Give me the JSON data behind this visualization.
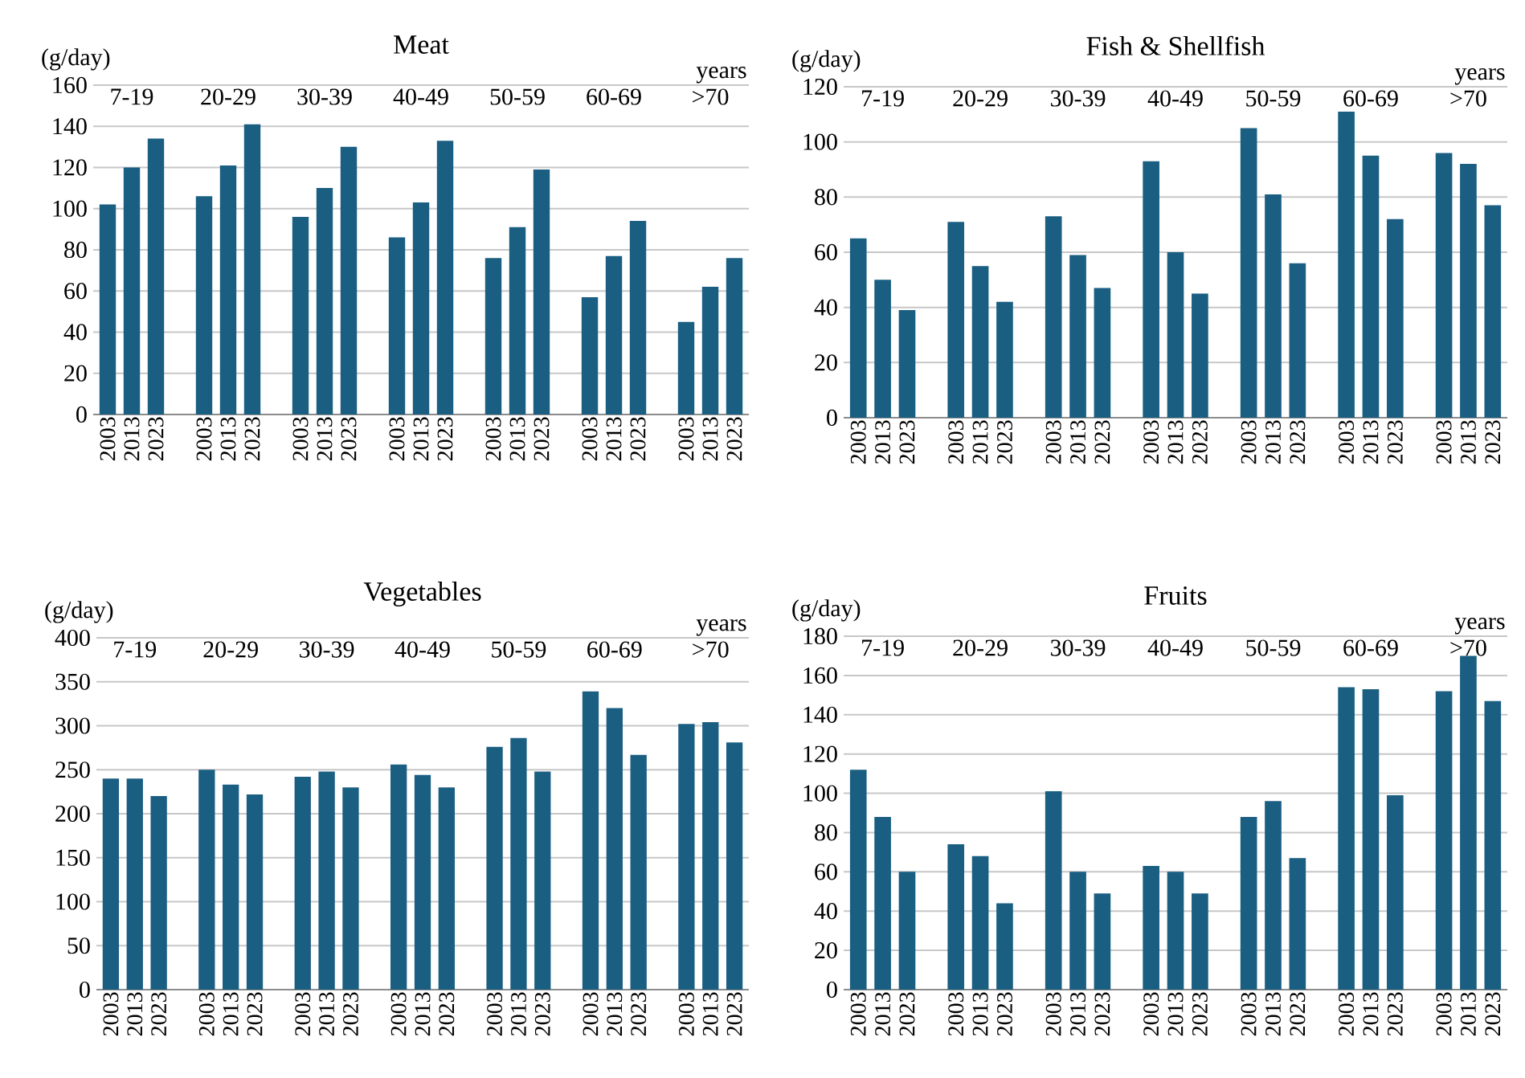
{
  "chart_data": [
    {
      "type": "bar",
      "title": "Meat",
      "ylabel": "(g/day)",
      "categories": [
        "2003",
        "2013",
        "2023",
        null,
        "2003",
        "2013",
        "2023",
        null,
        "2003",
        "2013",
        "2023",
        null,
        "2003",
        "2013",
        "2023",
        null,
        "2003",
        "2013",
        "2023",
        null,
        "2003",
        "2013",
        "2023",
        null,
        "2003",
        "2013",
        "2023"
      ],
      "values": [
        102,
        120,
        134,
        null,
        106,
        121,
        141,
        null,
        96,
        110,
        130,
        null,
        86,
        103,
        133,
        null,
        76,
        91,
        119,
        null,
        57,
        77,
        94,
        null,
        45,
        62,
        76
      ],
      "color": "#1a5e82",
      "ylim": [
        0,
        160
      ],
      "yticks": [
        0,
        20,
        40,
        60,
        80,
        100,
        120,
        140,
        160
      ],
      "grid": "y",
      "annotations": [
        "7-19",
        "20-29",
        "30-39",
        "40-49",
        "50-59",
        "60-69",
        ">70",
        "years"
      ]
    },
    {
      "type": "bar",
      "title": "Fish & Shellfish",
      "ylabel": "(g/day)",
      "categories": [
        "2003",
        "2013",
        "2023",
        null,
        "2003",
        "2013",
        "2023",
        null,
        "2003",
        "2013",
        "2023",
        null,
        "2003",
        "2013",
        "2023",
        null,
        "2003",
        "2013",
        "2023",
        null,
        "2003",
        "2013",
        "2023",
        null,
        "2003",
        "2013",
        "2023"
      ],
      "values": [
        65,
        50,
        39,
        null,
        71,
        55,
        42,
        null,
        73,
        59,
        47,
        null,
        93,
        60,
        45,
        null,
        105,
        81,
        56,
        null,
        111,
        95,
        72,
        null,
        96,
        92,
        77
      ],
      "color": "#1a5e82",
      "ylim": [
        0,
        120
      ],
      "yticks": [
        0,
        20,
        40,
        60,
        80,
        100,
        120
      ],
      "grid": "y",
      "annotations": [
        "7-19",
        "20-29",
        "30-39",
        "40-49",
        "50-59",
        "60-69",
        ">70",
        "years"
      ]
    },
    {
      "type": "bar",
      "title": "Vegetables",
      "ylabel": "(g/day)",
      "categories": [
        "2003",
        "2013",
        "2023",
        null,
        "2003",
        "2013",
        "2023",
        null,
        "2003",
        "2013",
        "2023",
        null,
        "2003",
        "2013",
        "2023",
        null,
        "2003",
        "2013",
        "2023",
        null,
        "2003",
        "2013",
        "2023",
        null,
        "2003",
        "2013",
        "2023"
      ],
      "values": [
        240,
        240,
        220,
        null,
        250,
        233,
        222,
        null,
        242,
        248,
        230,
        null,
        256,
        244,
        230,
        null,
        276,
        286,
        248,
        null,
        339,
        320,
        267,
        null,
        302,
        304,
        281
      ],
      "color": "#1a5e82",
      "ylim": [
        0,
        400
      ],
      "yticks": [
        0,
        50,
        100,
        150,
        200,
        250,
        300,
        350,
        400
      ],
      "grid": "y",
      "annotations": [
        "7-19",
        "20-29",
        "30-39",
        "40-49",
        "50-59",
        "60-69",
        ">70",
        "years"
      ]
    },
    {
      "type": "bar",
      "title": "Fruits",
      "ylabel": "(g/day)",
      "categories": [
        "2003",
        "2013",
        "2023",
        null,
        "2003",
        "2013",
        "2023",
        null,
        "2003",
        "2013",
        "2023",
        null,
        "2003",
        "2013",
        "2023",
        null,
        "2003",
        "2013",
        "2023",
        null,
        "2003",
        "2013",
        "2023",
        null,
        "2003",
        "2013",
        "2023"
      ],
      "values": [
        112,
        88,
        60,
        null,
        74,
        68,
        44,
        null,
        101,
        60,
        49,
        null,
        63,
        60,
        49,
        null,
        88,
        96,
        67,
        null,
        154,
        153,
        99,
        null,
        152,
        170,
        147
      ],
      "color": "#1a5e82",
      "ylim": [
        0,
        180
      ],
      "yticks": [
        0,
        20,
        40,
        60,
        80,
        100,
        120,
        140,
        160,
        180
      ],
      "grid": "y",
      "annotations": [
        "7-19",
        "20-29",
        "30-39",
        "40-49",
        "50-59",
        "60-69",
        ">70",
        "years"
      ]
    }
  ]
}
